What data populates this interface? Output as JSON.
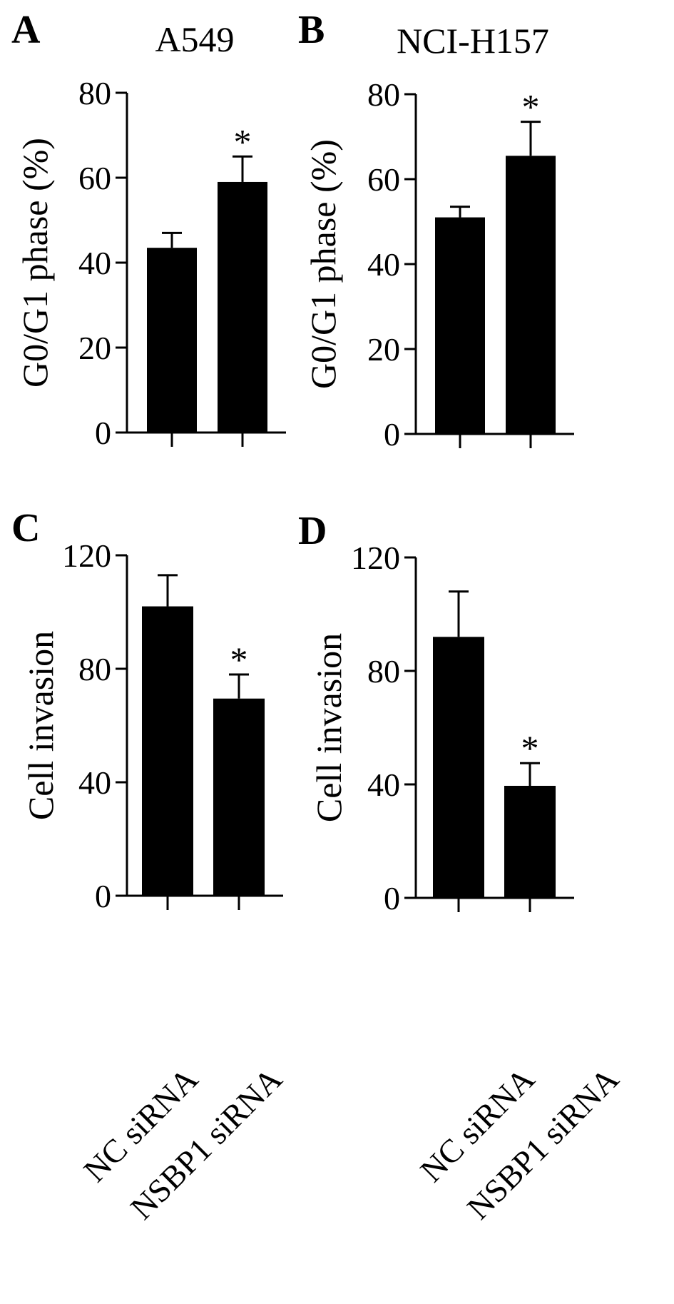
{
  "figure": {
    "category_labels": [
      "NC siRNA",
      "NSBP1 siRNA"
    ]
  },
  "chart_data": [
    {
      "type": "bar",
      "panel": "A",
      "title": "A549",
      "ylabel": "G0/G1 phase (%)",
      "xlabel": "",
      "categories": [
        "NC siRNA",
        "NSBP1 siRNA"
      ],
      "values": [
        43.5,
        59
      ],
      "errors": [
        3.5,
        6
      ],
      "significance": [
        "",
        "*"
      ],
      "ylim": [
        0,
        80
      ],
      "yticks": [
        0,
        20,
        40,
        60,
        80
      ],
      "color": "#000000"
    },
    {
      "type": "bar",
      "panel": "B",
      "title": "NCI-H157",
      "ylabel": "G0/G1 phase (%)",
      "xlabel": "",
      "categories": [
        "NC siRNA",
        "NSBP1 siRNA"
      ],
      "values": [
        51,
        65.5
      ],
      "errors": [
        2.5,
        8
      ],
      "significance": [
        "",
        "*"
      ],
      "ylim": [
        0,
        80
      ],
      "yticks": [
        0,
        20,
        40,
        60,
        80
      ],
      "color": "#000000"
    },
    {
      "type": "bar",
      "panel": "C",
      "title": "",
      "ylabel": "Cell invasion",
      "xlabel": "",
      "categories": [
        "NC siRNA",
        "NSBP1 siRNA"
      ],
      "values": [
        102,
        69.5
      ],
      "errors": [
        11,
        8.5
      ],
      "significance": [
        "",
        "*"
      ],
      "ylim": [
        0,
        120
      ],
      "yticks": [
        0,
        40,
        80,
        120
      ],
      "color": "#000000"
    },
    {
      "type": "bar",
      "panel": "D",
      "title": "",
      "ylabel": "Cell invasion",
      "xlabel": "",
      "categories": [
        "NC siRNA",
        "NSBP1 siRNA"
      ],
      "values": [
        92,
        39.5
      ],
      "errors": [
        16,
        8
      ],
      "significance": [
        "",
        "*"
      ],
      "ylim": [
        0,
        120
      ],
      "yticks": [
        0,
        40,
        80,
        120
      ],
      "color": "#000000"
    }
  ]
}
